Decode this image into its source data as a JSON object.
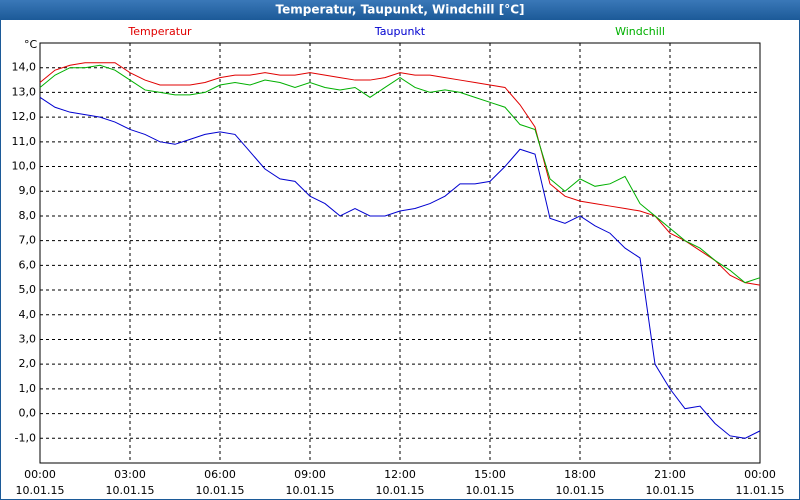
{
  "chart_data": {
    "type": "line",
    "title": "Temperatur, Taupunkt, Windchill [°C]",
    "y_label": "°C",
    "x": [
      0,
      0.5,
      1,
      1.5,
      2,
      2.5,
      3,
      3.5,
      4,
      4.5,
      5,
      5.5,
      6,
      6.5,
      7,
      7.5,
      8,
      8.5,
      9,
      9.5,
      10,
      10.5,
      11,
      11.5,
      12,
      12.5,
      13,
      13.5,
      14,
      14.5,
      15,
      15.5,
      16,
      16.5,
      17,
      17.5,
      18,
      18.5,
      19,
      19.5,
      20,
      20.5,
      21,
      21.5,
      22,
      22.5,
      23,
      23.5,
      24
    ],
    "series": [
      {
        "name": "Temperatur",
        "color": "#e00000",
        "values": [
          13.4,
          13.9,
          14.1,
          14.2,
          14.2,
          14.2,
          13.8,
          13.5,
          13.3,
          13.3,
          13.3,
          13.4,
          13.6,
          13.7,
          13.7,
          13.8,
          13.7,
          13.7,
          13.8,
          13.7,
          13.6,
          13.5,
          13.5,
          13.6,
          13.8,
          13.7,
          13.7,
          13.6,
          13.5,
          13.4,
          13.3,
          13.2,
          12.5,
          11.6,
          9.3,
          8.8,
          8.6,
          8.5,
          8.4,
          8.3,
          8.2,
          8.0,
          7.3,
          7.0,
          6.6,
          6.2,
          5.6,
          5.3,
          5.2
        ]
      },
      {
        "name": "Taupunkt",
        "color": "#0000d0",
        "values": [
          12.8,
          12.4,
          12.2,
          12.1,
          12.0,
          11.8,
          11.5,
          11.3,
          11.0,
          10.9,
          11.1,
          11.3,
          11.4,
          11.3,
          10.6,
          9.9,
          9.5,
          9.4,
          8.8,
          8.5,
          8.0,
          8.3,
          8.0,
          8.0,
          8.2,
          8.3,
          8.5,
          8.8,
          9.3,
          9.3,
          9.4,
          10.0,
          10.7,
          10.5,
          7.9,
          7.7,
          8.0,
          7.6,
          7.3,
          6.7,
          6.3,
          2.0,
          1.0,
          0.2,
          0.3,
          -0.4,
          -0.9,
          -1.0,
          -0.7
        ]
      },
      {
        "name": "Windchill",
        "color": "#00b000",
        "values": [
          13.2,
          13.7,
          14.0,
          14.0,
          14.1,
          13.9,
          13.5,
          13.1,
          13.0,
          12.9,
          12.9,
          13.0,
          13.3,
          13.4,
          13.3,
          13.5,
          13.4,
          13.2,
          13.4,
          13.2,
          13.1,
          13.2,
          12.8,
          13.2,
          13.6,
          13.2,
          13.0,
          13.1,
          13.0,
          12.8,
          12.6,
          12.4,
          11.7,
          11.5,
          9.5,
          9.0,
          9.5,
          9.2,
          9.3,
          9.6,
          8.5,
          8.0,
          7.5,
          7.0,
          6.7,
          6.2,
          5.8,
          5.3,
          5.5
        ]
      }
    ],
    "xlim": [
      0,
      24
    ],
    "xticks": [
      {
        "value": 0,
        "label": "00:00",
        "date": "10.01.15"
      },
      {
        "value": 3,
        "label": "03:00",
        "date": "10.01.15"
      },
      {
        "value": 6,
        "label": "06:00",
        "date": "10.01.15"
      },
      {
        "value": 9,
        "label": "09:00",
        "date": "10.01.15"
      },
      {
        "value": 12,
        "label": "12:00",
        "date": "10.01.15"
      },
      {
        "value": 15,
        "label": "15:00",
        "date": "10.01.15"
      },
      {
        "value": 18,
        "label": "18:00",
        "date": "10.01.15"
      },
      {
        "value": 21,
        "label": "21:00",
        "date": "10.01.15"
      },
      {
        "value": 24,
        "label": "00:00",
        "date": "11.01.15"
      }
    ],
    "ylim": [
      -2,
      15
    ],
    "yticks": [
      {
        "value": -1,
        "label": "-1,0"
      },
      {
        "value": 0,
        "label": "0,0"
      },
      {
        "value": 1,
        "label": "1,0"
      },
      {
        "value": 2,
        "label": "2,0"
      },
      {
        "value": 3,
        "label": "3,0"
      },
      {
        "value": 4,
        "label": "4,0"
      },
      {
        "value": 5,
        "label": "5,0"
      },
      {
        "value": 6,
        "label": "6,0"
      },
      {
        "value": 7,
        "label": "7,0"
      },
      {
        "value": 8,
        "label": "8,0"
      },
      {
        "value": 9,
        "label": "9,0"
      },
      {
        "value": 10,
        "label": "10,0"
      },
      {
        "value": 11,
        "label": "11,0"
      },
      {
        "value": 12,
        "label": "12,0"
      },
      {
        "value": 13,
        "label": "13,0"
      },
      {
        "value": 14,
        "label": "14,0"
      }
    ],
    "grid": true
  }
}
